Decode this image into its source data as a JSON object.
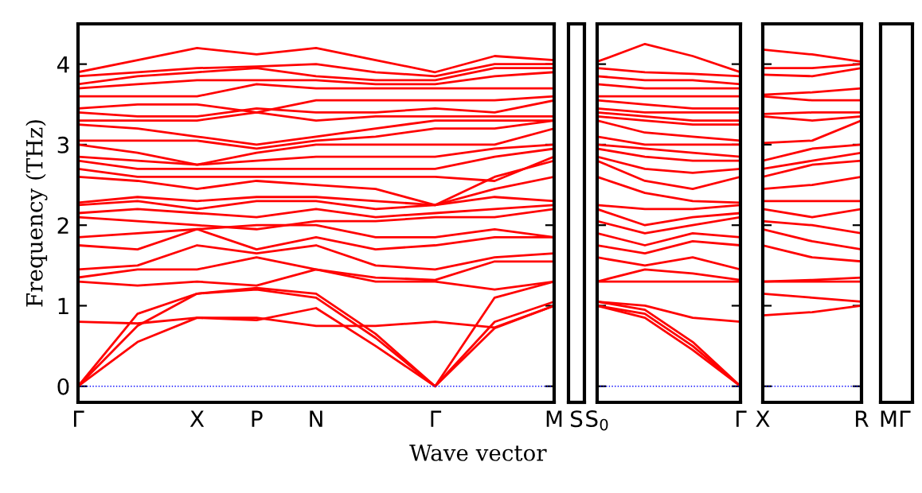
{
  "chart_data": [
    {
      "type": "line",
      "ylabel": "Frequency (THz)",
      "xlabel": "Wave vector",
      "categories": [
        "Γ",
        null,
        "X",
        "P",
        "N",
        null,
        "Γ",
        null,
        "M"
      ],
      "ylim": [
        -0.2,
        4.5
      ],
      "yticks": [
        0,
        1,
        2,
        3,
        4
      ],
      "grid": false,
      "legend": false,
      "marker": "none",
      "line_style": "solid",
      "ref_lines": [
        {
          "axis": "y",
          "value": 0,
          "color": "#0000ff",
          "line_style": "dotted"
        }
      ],
      "series": [
        {
          "color": "#ff0000",
          "values": [
            0,
            0.55,
            0.85,
            0.82,
            0.97,
            0.5,
            0,
            0.72,
            1.0
          ]
        },
        {
          "color": "#ff0000",
          "values": [
            0,
            0.75,
            1.15,
            1.2,
            1.1,
            0.6,
            0,
            0.8,
            1.05
          ]
        },
        {
          "color": "#ff0000",
          "values": [
            0,
            0.9,
            1.15,
            1.22,
            1.15,
            0.65,
            0,
            1.1,
            1.3
          ]
        },
        {
          "color": "#ff0000",
          "values": [
            0.8,
            0.78,
            0.85,
            0.85,
            0.75,
            0.75,
            0.8,
            0.73,
            1.0
          ]
        },
        {
          "color": "#ff0000",
          "values": [
            1.3,
            1.25,
            1.3,
            1.25,
            1.45,
            1.3,
            1.3,
            1.2,
            1.3
          ]
        },
        {
          "color": "#ff0000",
          "values": [
            1.35,
            1.45,
            1.45,
            1.6,
            1.45,
            1.35,
            1.32,
            1.55,
            1.55
          ]
        },
        {
          "color": "#ff0000",
          "values": [
            1.45,
            1.5,
            1.75,
            1.65,
            1.75,
            1.5,
            1.45,
            1.6,
            1.65
          ]
        },
        {
          "color": "#ff0000",
          "values": [
            1.75,
            1.7,
            1.95,
            1.7,
            1.85,
            1.7,
            1.75,
            1.85,
            1.85
          ]
        },
        {
          "color": "#ff0000",
          "values": [
            1.85,
            1.9,
            1.95,
            2.0,
            2.0,
            1.85,
            1.85,
            1.95,
            1.85
          ]
        },
        {
          "color": "#ff0000",
          "values": [
            2.1,
            2.05,
            2.0,
            1.95,
            2.05,
            2.05,
            2.1,
            2.1,
            2.2
          ]
        },
        {
          "color": "#ff0000",
          "values": [
            2.15,
            2.2,
            2.15,
            2.1,
            2.2,
            2.1,
            2.15,
            2.2,
            2.25
          ]
        },
        {
          "color": "#ff0000",
          "values": [
            2.25,
            2.3,
            2.2,
            2.3,
            2.3,
            2.2,
            2.25,
            2.35,
            2.3
          ]
        },
        {
          "color": "#ff0000",
          "values": [
            2.28,
            2.35,
            2.3,
            2.35,
            2.35,
            2.3,
            2.25,
            2.45,
            2.6
          ]
        },
        {
          "color": "#ff0000",
          "values": [
            2.6,
            2.55,
            2.45,
            2.55,
            2.5,
            2.45,
            2.25,
            2.6,
            2.8
          ]
        },
        {
          "color": "#ff0000",
          "values": [
            2.7,
            2.6,
            2.6,
            2.6,
            2.6,
            2.6,
            2.6,
            2.55,
            2.85
          ]
        },
        {
          "color": "#ff0000",
          "values": [
            2.8,
            2.7,
            2.7,
            2.7,
            2.7,
            2.7,
            2.7,
            2.85,
            2.95
          ]
        },
        {
          "color": "#ff0000",
          "values": [
            2.85,
            2.8,
            2.75,
            2.8,
            2.85,
            2.85,
            2.85,
            2.95,
            3.0
          ]
        },
        {
          "color": "#ff0000",
          "values": [
            3.0,
            2.9,
            2.75,
            2.9,
            3.0,
            3.0,
            3.0,
            3.0,
            3.2
          ]
        },
        {
          "color": "#ff0000",
          "values": [
            3.05,
            3.05,
            3.05,
            2.95,
            3.05,
            3.1,
            3.2,
            3.2,
            3.3
          ]
        },
        {
          "color": "#ff0000",
          "values": [
            3.25,
            3.2,
            3.1,
            3.0,
            3.1,
            3.2,
            3.3,
            3.3,
            3.3
          ]
        },
        {
          "color": "#ff0000",
          "values": [
            3.3,
            3.3,
            3.3,
            3.4,
            3.3,
            3.35,
            3.35,
            3.35,
            3.35
          ]
        },
        {
          "color": "#ff0000",
          "values": [
            3.4,
            3.35,
            3.35,
            3.45,
            3.4,
            3.4,
            3.45,
            3.4,
            3.55
          ]
        },
        {
          "color": "#ff0000",
          "values": [
            3.45,
            3.5,
            3.5,
            3.4,
            3.55,
            3.55,
            3.55,
            3.55,
            3.6
          ]
        },
        {
          "color": "#ff0000",
          "values": [
            3.6,
            3.6,
            3.6,
            3.75,
            3.7,
            3.7,
            3.7,
            3.7,
            3.7
          ]
        },
        {
          "color": "#ff0000",
          "values": [
            3.7,
            3.75,
            3.8,
            3.8,
            3.8,
            3.75,
            3.75,
            3.85,
            3.9
          ]
        },
        {
          "color": "#ff0000",
          "values": [
            3.75,
            3.85,
            3.9,
            3.95,
            3.85,
            3.8,
            3.8,
            3.95,
            3.95
          ]
        },
        {
          "color": "#ff0000",
          "values": [
            3.85,
            3.9,
            3.95,
            3.97,
            4.0,
            3.9,
            3.85,
            4.0,
            4.0
          ]
        },
        {
          "color": "#ff0000",
          "values": [
            3.9,
            4.05,
            4.2,
            4.12,
            4.2,
            4.05,
            3.9,
            4.1,
            4.05
          ]
        }
      ]
    },
    {
      "type": "line",
      "categories": [
        "S"
      ],
      "ylim": [
        -0.2,
        4.5
      ],
      "yticks": [
        {
          "value": 0,
          "label": null
        },
        {
          "value": 1,
          "label": null
        },
        {
          "value": 2,
          "label": null
        },
        {
          "value": 3,
          "label": null
        },
        {
          "value": 4,
          "label": null
        }
      ],
      "tick_labels": "x",
      "grid": false,
      "legend": false
    },
    {
      "type": "line",
      "categories": [
        "S$_{0}$",
        null,
        null,
        "Γ"
      ],
      "ylim": [
        -0.2,
        4.5
      ],
      "yticks": [
        {
          "value": 0,
          "label": null
        },
        {
          "value": 1,
          "label": null
        },
        {
          "value": 2,
          "label": null
        },
        {
          "value": 3,
          "label": null
        },
        {
          "value": 4,
          "label": null
        }
      ],
      "tick_labels": "x",
      "grid": false,
      "legend": false,
      "marker": "none",
      "line_style": "solid",
      "ref_lines": [
        {
          "axis": "y",
          "value": 0,
          "color": "#0000ff",
          "line_style": "dotted"
        }
      ],
      "series": [
        {
          "color": "#ff0000",
          "values": [
            1.0,
            0.85,
            0.45,
            0
          ]
        },
        {
          "color": "#ff0000",
          "values": [
            1.0,
            0.9,
            0.5,
            0
          ]
        },
        {
          "color": "#ff0000",
          "values": [
            1.05,
            0.95,
            0.55,
            0
          ]
        },
        {
          "color": "#ff0000",
          "values": [
            1.05,
            1.0,
            0.85,
            0.8
          ]
        },
        {
          "color": "#ff0000",
          "values": [
            1.3,
            1.3,
            1.3,
            1.3
          ]
        },
        {
          "color": "#ff0000",
          "values": [
            1.3,
            1.45,
            1.4,
            1.32
          ]
        },
        {
          "color": "#ff0000",
          "values": [
            1.6,
            1.5,
            1.6,
            1.45
          ]
        },
        {
          "color": "#ff0000",
          "values": [
            1.75,
            1.65,
            1.8,
            1.75
          ]
        },
        {
          "color": "#ff0000",
          "values": [
            1.9,
            1.75,
            1.9,
            1.85
          ]
        },
        {
          "color": "#ff0000",
          "values": [
            2.05,
            1.9,
            2.0,
            2.1
          ]
        },
        {
          "color": "#ff0000",
          "values": [
            2.2,
            2.0,
            2.1,
            2.15
          ]
        },
        {
          "color": "#ff0000",
          "values": [
            2.25,
            2.2,
            2.2,
            2.25
          ]
        },
        {
          "color": "#ff0000",
          "values": [
            2.6,
            2.4,
            2.3,
            2.28
          ]
        },
        {
          "color": "#ff0000",
          "values": [
            2.8,
            2.55,
            2.45,
            2.6
          ]
        },
        {
          "color": "#ff0000",
          "values": [
            2.85,
            2.7,
            2.65,
            2.7
          ]
        },
        {
          "color": "#ff0000",
          "values": [
            2.95,
            2.85,
            2.8,
            2.8
          ]
        },
        {
          "color": "#ff0000",
          "values": [
            3.0,
            2.95,
            2.9,
            2.85
          ]
        },
        {
          "color": "#ff0000",
          "values": [
            3.1,
            3.0,
            3.0,
            3.0
          ]
        },
        {
          "color": "#ff0000",
          "values": [
            3.3,
            3.15,
            3.1,
            3.05
          ]
        },
        {
          "color": "#ff0000",
          "values": [
            3.35,
            3.3,
            3.25,
            3.25
          ]
        },
        {
          "color": "#ff0000",
          "values": [
            3.4,
            3.35,
            3.3,
            3.3
          ]
        },
        {
          "color": "#ff0000",
          "values": [
            3.45,
            3.4,
            3.4,
            3.4
          ]
        },
        {
          "color": "#ff0000",
          "values": [
            3.55,
            3.5,
            3.45,
            3.45
          ]
        },
        {
          "color": "#ff0000",
          "values": [
            3.6,
            3.6,
            3.6,
            3.6
          ]
        },
        {
          "color": "#ff0000",
          "values": [
            3.75,
            3.7,
            3.7,
            3.7
          ]
        },
        {
          "color": "#ff0000",
          "values": [
            3.85,
            3.8,
            3.8,
            3.75
          ]
        },
        {
          "color": "#ff0000",
          "values": [
            3.95,
            3.9,
            3.88,
            3.85
          ]
        },
        {
          "color": "#ff0000",
          "values": [
            4.03,
            4.25,
            4.1,
            3.9
          ]
        }
      ]
    },
    {
      "type": "line",
      "categories": [
        "X",
        null,
        "R"
      ],
      "ylim": [
        -0.2,
        4.5
      ],
      "yticks": [
        {
          "value": 0,
          "label": null
        },
        {
          "value": 1,
          "label": null
        },
        {
          "value": 2,
          "label": null
        },
        {
          "value": 3,
          "label": null
        },
        {
          "value": 4,
          "label": null
        }
      ],
      "tick_labels": "x",
      "grid": false,
      "legend": false,
      "marker": "none",
      "line_style": "solid",
      "ref_lines": [
        {
          "axis": "y",
          "value": 0,
          "color": "#0000ff",
          "line_style": "dotted"
        }
      ],
      "series": [
        {
          "color": "#ff0000",
          "values": [
            0.88,
            0.92,
            1.0
          ]
        },
        {
          "color": "#ff0000",
          "values": [
            1.15,
            1.1,
            1.05
          ]
        },
        {
          "color": "#ff0000",
          "values": [
            1.3,
            1.3,
            1.3
          ]
        },
        {
          "color": "#ff0000",
          "values": [
            1.3,
            1.32,
            1.35
          ]
        },
        {
          "color": "#ff0000",
          "values": [
            1.75,
            1.6,
            1.55
          ]
        },
        {
          "color": "#ff0000",
          "values": [
            1.95,
            1.8,
            1.7
          ]
        },
        {
          "color": "#ff0000",
          "values": [
            2.05,
            2.0,
            1.9
          ]
        },
        {
          "color": "#ff0000",
          "values": [
            2.2,
            2.1,
            2.2
          ]
        },
        {
          "color": "#ff0000",
          "values": [
            2.3,
            2.3,
            2.3
          ]
        },
        {
          "color": "#ff0000",
          "values": [
            2.45,
            2.5,
            2.6
          ]
        },
        {
          "color": "#ff0000",
          "values": [
            2.6,
            2.75,
            2.8
          ]
        },
        {
          "color": "#ff0000",
          "values": [
            2.7,
            2.8,
            2.9
          ]
        },
        {
          "color": "#ff0000",
          "values": [
            2.8,
            2.95,
            3.0
          ]
        },
        {
          "color": "#ff0000",
          "values": [
            3.02,
            3.05,
            3.3
          ]
        },
        {
          "color": "#ff0000",
          "values": [
            3.35,
            3.3,
            3.35
          ]
        },
        {
          "color": "#ff0000",
          "values": [
            3.38,
            3.4,
            3.4
          ]
        },
        {
          "color": "#ff0000",
          "values": [
            3.6,
            3.55,
            3.55
          ]
        },
        {
          "color": "#ff0000",
          "values": [
            3.62,
            3.65,
            3.7
          ]
        },
        {
          "color": "#ff0000",
          "values": [
            3.87,
            3.85,
            3.95
          ]
        },
        {
          "color": "#ff0000",
          "values": [
            3.95,
            3.95,
            4.0
          ]
        },
        {
          "color": "#ff0000",
          "values": [
            4.18,
            4.12,
            4.03
          ]
        }
      ]
    },
    {
      "type": "line",
      "categories": [
        "M",
        "Γ"
      ],
      "ylim": [
        -0.2,
        4.5
      ],
      "yticks": [
        {
          "value": 0,
          "label": null
        },
        {
          "value": 1,
          "label": null
        },
        {
          "value": 2,
          "label": null
        },
        {
          "value": 3,
          "label": null
        },
        {
          "value": 4,
          "label": null
        }
      ],
      "tick_labels": "x",
      "grid": false,
      "legend": false
    }
  ]
}
